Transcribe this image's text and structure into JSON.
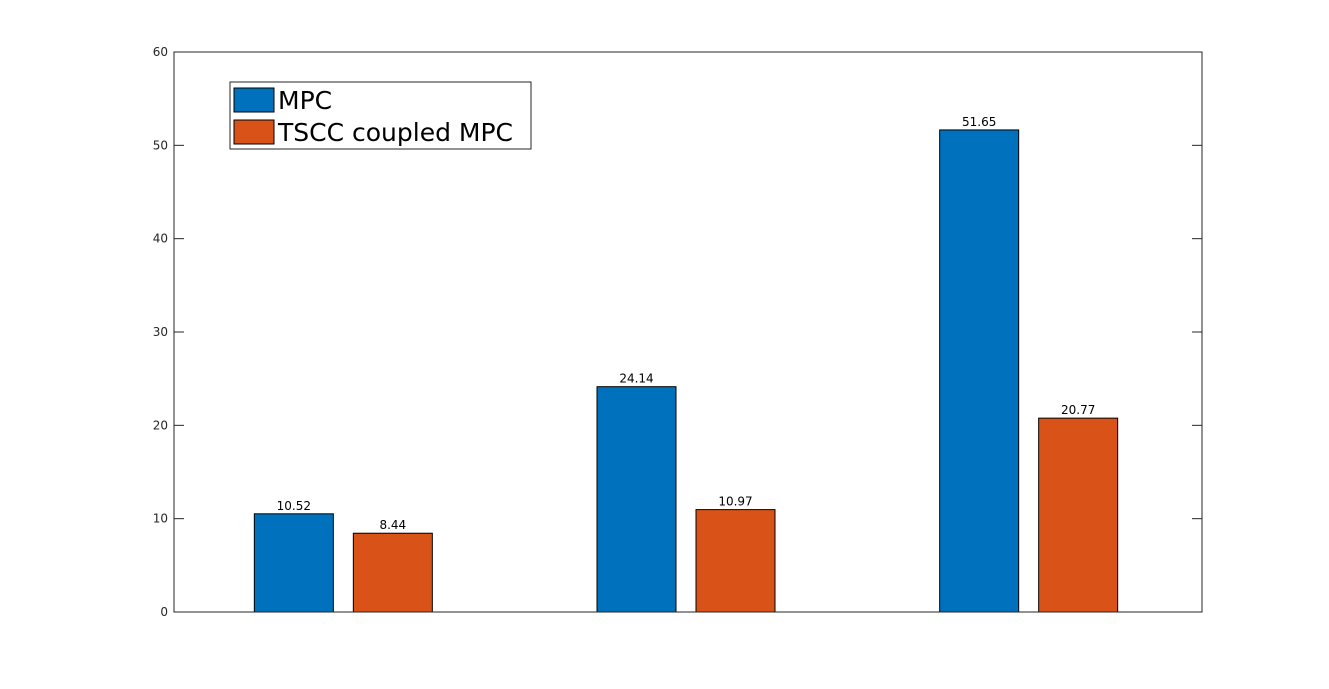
{
  "chart_data": {
    "type": "bar",
    "categories": [
      "",
      "",
      ""
    ],
    "series": [
      {
        "name": "MPC",
        "color": "#0072BD",
        "values": [
          10.52,
          24.14,
          51.65
        ],
        "labels": [
          "10.52",
          "24.14",
          "51.65"
        ]
      },
      {
        "name": "TSCC coupled MPC",
        "color": "#D95319",
        "values": [
          8.44,
          10.97,
          20.77
        ],
        "labels": [
          "8.44",
          "10.97",
          "20.77"
        ]
      }
    ],
    "ylim": [
      0,
      60
    ],
    "yticks": [
      "0",
      "10",
      "20",
      "30",
      "40",
      "50",
      "60"
    ],
    "title": "",
    "xlabel": "",
    "ylabel": "",
    "grid": false,
    "legend_position": "top-left"
  }
}
